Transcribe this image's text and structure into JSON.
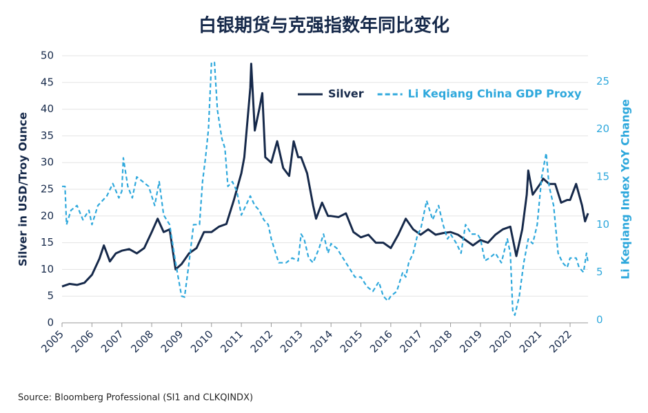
{
  "chart_data": {
    "type": "line",
    "title": "白银期货与克强指数年同比变化",
    "ylabel": "Silver in USD/Troy Ounce",
    "y2label": "Li Keqiang Index YoY Change",
    "source": "Source: Bloomberg Professional (SI1 and CLKQINDX)",
    "xlim": [
      2005,
      2022.6
    ],
    "xticks": [
      2005,
      2006,
      2007,
      2008,
      2009,
      2010,
      2011,
      2012,
      2013,
      2014,
      2015,
      2016,
      2017,
      2018,
      2019,
      2020,
      2021,
      2022
    ],
    "ylim": [
      0,
      50
    ],
    "yticks": [
      0,
      5,
      10,
      15,
      20,
      25,
      30,
      35,
      40,
      45,
      50
    ],
    "y2lim": [
      -0.3,
      27.7
    ],
    "y2ticks": [
      0,
      5,
      10,
      15,
      20,
      25
    ],
    "grid": true,
    "legend": "top",
    "series": [
      {
        "name": "Silver",
        "color": "#16294a",
        "dashed": false,
        "axis": "y",
        "x": [
          2005.0,
          2005.25,
          2005.5,
          2005.75,
          2006.0,
          2006.25,
          2006.4,
          2006.6,
          2006.8,
          2007.0,
          2007.25,
          2007.5,
          2007.75,
          2008.0,
          2008.2,
          2008.4,
          2008.6,
          2008.8,
          2009.0,
          2009.25,
          2009.5,
          2009.75,
          2010.0,
          2010.25,
          2010.5,
          2010.75,
          2011.0,
          2011.1,
          2011.3,
          2011.33,
          2011.45,
          2011.6,
          2011.7,
          2011.8,
          2012.0,
          2012.2,
          2012.4,
          2012.6,
          2012.75,
          2012.9,
          2013.0,
          2013.2,
          2013.4,
          2013.5,
          2013.7,
          2013.9,
          2014.0,
          2014.25,
          2014.5,
          2014.75,
          2015.0,
          2015.25,
          2015.5,
          2015.75,
          2016.0,
          2016.25,
          2016.5,
          2016.75,
          2017.0,
          2017.25,
          2017.5,
          2017.75,
          2018.0,
          2018.25,
          2018.5,
          2018.75,
          2019.0,
          2019.25,
          2019.5,
          2019.75,
          2020.0,
          2020.2,
          2020.4,
          2020.55,
          2020.6,
          2020.75,
          2021.0,
          2021.1,
          2021.3,
          2021.5,
          2021.7,
          2021.9,
          2022.0,
          2022.2,
          2022.4,
          2022.5,
          2022.6
        ],
        "values": [
          6.8,
          7.3,
          7.1,
          7.5,
          9.0,
          12,
          14.5,
          11.5,
          13,
          13.5,
          13.8,
          13,
          14,
          17,
          19.5,
          17,
          17.5,
          10,
          11,
          13,
          14,
          17,
          17,
          18,
          18.5,
          23,
          28,
          31,
          44,
          48.5,
          36,
          40,
          43,
          31,
          30,
          34,
          29,
          27.5,
          34,
          31,
          31,
          28,
          22,
          19.5,
          22.5,
          20,
          20,
          19.8,
          20.5,
          17,
          16,
          16.5,
          15,
          15,
          14,
          16.5,
          19.5,
          17.5,
          16.5,
          17.5,
          16.5,
          16.8,
          17,
          16.5,
          15.5,
          14.5,
          15.5,
          15,
          16.5,
          17.5,
          18,
          12.5,
          17.5,
          24,
          28.5,
          24,
          26,
          27,
          26,
          26,
          22.5,
          23,
          23,
          26,
          22,
          19,
          20.5
        ]
      },
      {
        "name": "Li Keqiang China GDP Proxy",
        "color": "#2ea8dc",
        "dashed": true,
        "axis": "y2",
        "x": [
          2005.0,
          2005.1,
          2005.15,
          2005.3,
          2005.5,
          2005.7,
          2005.9,
          2006.0,
          2006.2,
          2006.5,
          2006.7,
          2006.9,
          2007.0,
          2007.05,
          2007.2,
          2007.35,
          2007.5,
          2007.7,
          2007.9,
          2008.1,
          2008.25,
          2008.4,
          2008.6,
          2008.8,
          2009.0,
          2009.1,
          2009.25,
          2009.4,
          2009.6,
          2009.7,
          2009.8,
          2009.9,
          2010.0,
          2010.1,
          2010.2,
          2010.35,
          2010.45,
          2010.55,
          2010.7,
          2010.85,
          2011.0,
          2011.15,
          2011.3,
          2011.45,
          2011.6,
          2011.75,
          2011.9,
          2012.0,
          2012.1,
          2012.25,
          2012.5,
          2012.7,
          2012.9,
          2013.0,
          2013.1,
          2013.25,
          2013.4,
          2013.6,
          2013.75,
          2013.9,
          2014.0,
          2014.2,
          2014.4,
          2014.6,
          2014.8,
          2015.0,
          2015.2,
          2015.4,
          2015.5,
          2015.6,
          2015.75,
          2015.9,
          2016.0,
          2016.2,
          2016.4,
          2016.5,
          2016.6,
          2016.75,
          2016.9,
          2017.0,
          2017.2,
          2017.4,
          2017.6,
          2017.75,
          2017.9,
          2018.0,
          2018.2,
          2018.35,
          2018.5,
          2018.7,
          2018.9,
          2019.0,
          2019.15,
          2019.3,
          2019.5,
          2019.7,
          2019.9,
          2020.0,
          2020.08,
          2020.15,
          2020.3,
          2020.45,
          2020.6,
          2020.75,
          2020.9,
          2021.05,
          2021.2,
          2021.3,
          2021.45,
          2021.6,
          2021.75,
          2021.9,
          2022.0,
          2022.2,
          2022.3,
          2022.45,
          2022.55,
          2022.6
        ],
        "values": [
          14,
          14,
          10,
          11.5,
          12,
          10.5,
          11.5,
          10,
          12,
          13,
          14.3,
          12.8,
          13.5,
          17,
          14,
          12.8,
          15,
          14.5,
          14,
          12,
          14.5,
          11,
          10,
          6,
          2.5,
          2.4,
          6,
          10,
          10,
          14.5,
          17,
          20,
          27,
          27,
          22,
          19,
          18,
          14,
          14.5,
          13.5,
          11,
          12,
          13,
          12,
          11.5,
          10.5,
          10,
          8.5,
          7.5,
          6,
          6,
          6.5,
          6.2,
          9,
          8.5,
          6.5,
          6,
          7.5,
          9,
          7,
          8,
          7.5,
          6.5,
          5.5,
          4.5,
          4.5,
          3.5,
          3,
          3.5,
          4,
          2.5,
          2,
          2.5,
          3,
          5,
          4.5,
          6,
          7,
          9,
          9.5,
          12.5,
          10.5,
          12,
          10,
          8.5,
          9,
          8,
          7,
          10,
          9,
          9,
          8.5,
          6.2,
          6.5,
          7,
          6,
          8.5,
          7,
          1,
          0.5,
          2.5,
          6,
          8.5,
          8,
          10,
          15,
          17.5,
          14,
          12,
          7,
          6,
          5.5,
          6.5,
          6.5,
          5.5,
          5,
          7,
          6
        ]
      }
    ]
  }
}
